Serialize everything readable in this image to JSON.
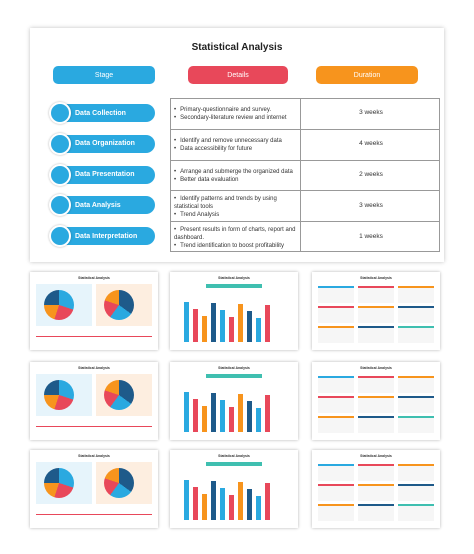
{
  "title": "Statistical Analysis",
  "headers": {
    "stage": "Stage",
    "details": "Details",
    "duration": "Duration"
  },
  "rows": [
    {
      "stage": "Data Collection",
      "details": [
        "Primary-questionnaire and survey.",
        "Secondary-literature review and internet"
      ],
      "duration": "3 weeks"
    },
    {
      "stage": "Data Organization",
      "details": [
        "Identify and remove unnecessary data",
        "Data accessibility for future"
      ],
      "duration": "4 weeks"
    },
    {
      "stage": "Data Presentation",
      "details": [
        "Arrange and submerge the organized data",
        "Better data evaluation"
      ],
      "duration": "2 weeks"
    },
    {
      "stage": "Data Analysis",
      "details": [
        "Identify patterns and trends by using statistical tools",
        "Trend Analysis"
      ],
      "duration": "3 weeks"
    },
    {
      "stage": "Data Interpretation",
      "details": [
        "Present results in form of charts, report and dashboard.",
        "Trend identification to boost profitability"
      ],
      "duration": "1 weeks"
    }
  ],
  "thumbnails": [
    {
      "title": "Statistical Analysis"
    },
    {
      "title": "Statistical Analysis"
    },
    {
      "title": "Statistical Analysis"
    },
    {
      "title": "Statistical Analysis"
    },
    {
      "title": "Statistical Analysis"
    },
    {
      "title": "Statistical Analysis"
    },
    {
      "title": "Statistical Analysis"
    },
    {
      "title": "Statistical Analysis"
    },
    {
      "title": "Statistical Analysis"
    }
  ]
}
